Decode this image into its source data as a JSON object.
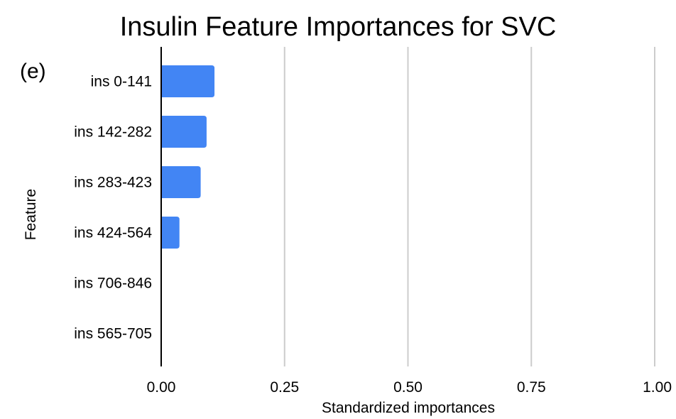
{
  "chart_data": {
    "type": "bar",
    "orientation": "horizontal",
    "title": "Insulin Feature Importances for SVC",
    "panel_label": "(e)",
    "xlabel": "Standardized importances",
    "ylabel": "Feature",
    "categories": [
      "ins 0-141",
      "ins 142-282",
      "ins 283-423",
      "ins 424-564",
      "ins 706-846",
      "ins 565-705"
    ],
    "values": [
      0.108,
      0.092,
      0.08,
      0.037,
      0.0,
      0.0
    ],
    "xlim": [
      0,
      1.0
    ],
    "xticks": [
      0,
      0.25,
      0.5,
      0.75,
      1.0
    ],
    "xtick_labels": [
      "0.00",
      "0.25",
      "0.50",
      "0.75",
      "1.00"
    ],
    "grid": "vertical",
    "legend": "none",
    "colors": {
      "bar": "#4285f4",
      "grid": "#cccccc",
      "axis": "#000000"
    }
  }
}
